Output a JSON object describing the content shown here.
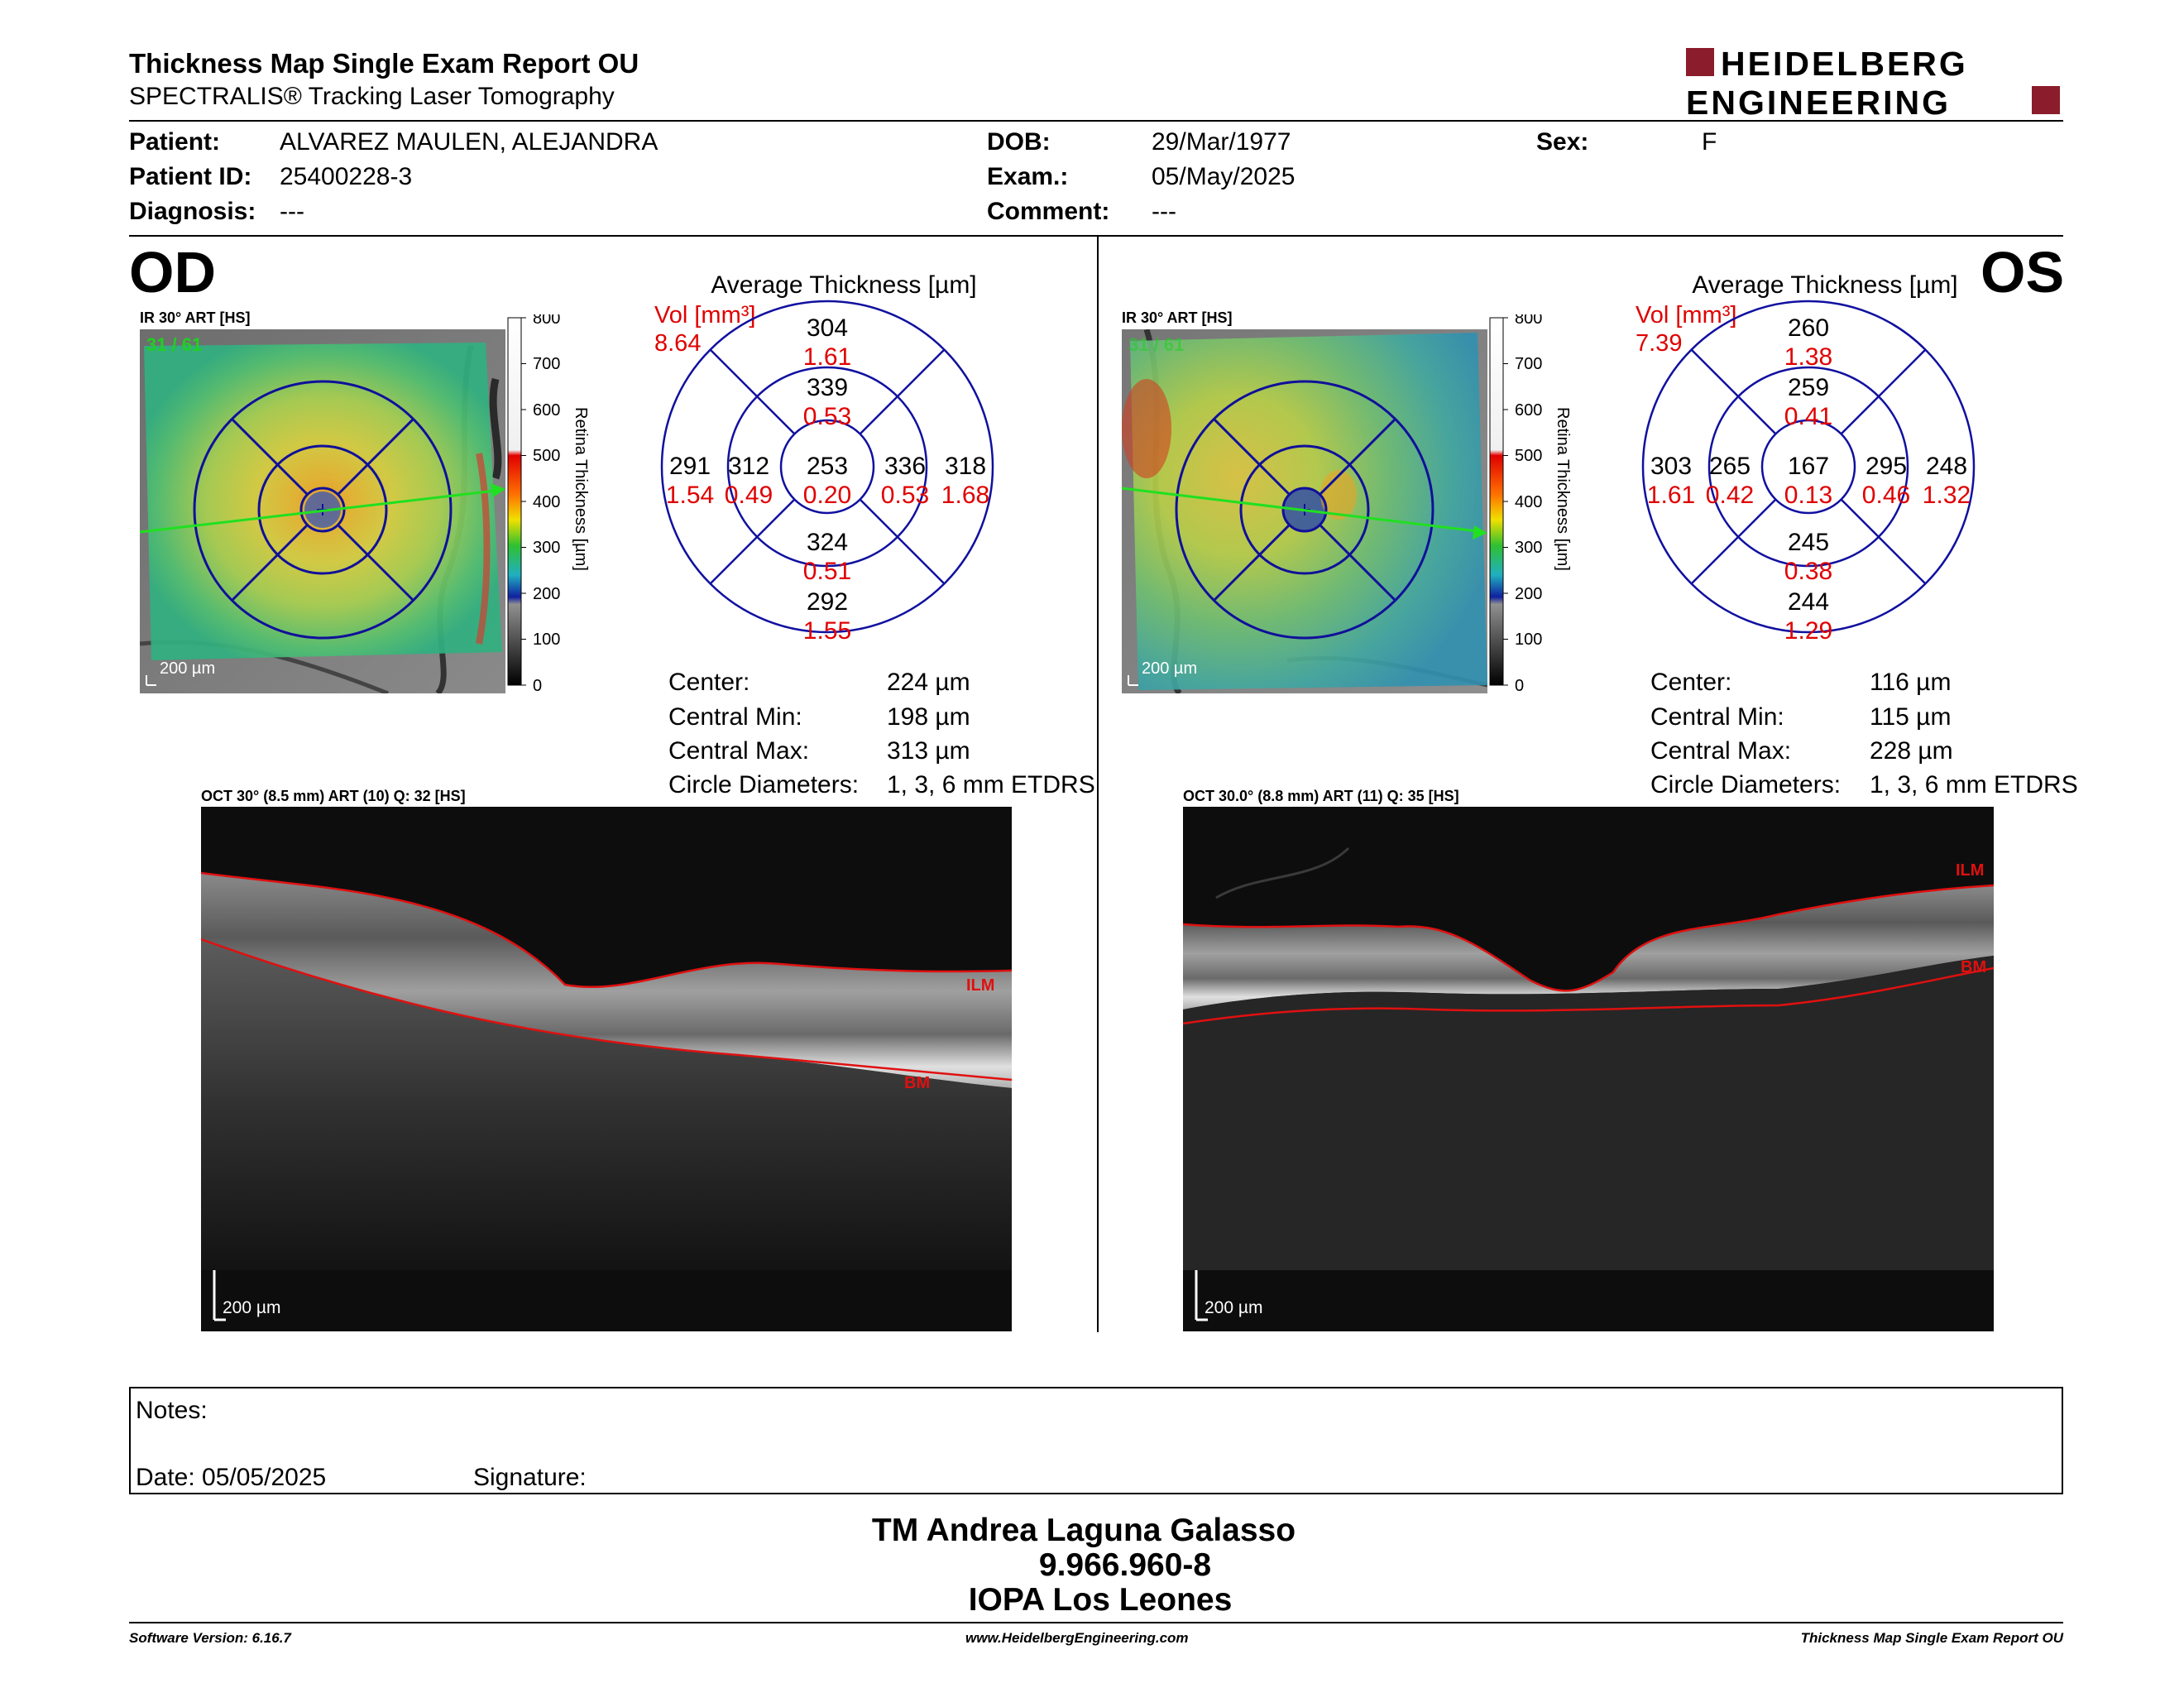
{
  "header": {
    "title": "Thickness Map Single Exam Report OU",
    "subtitle": "SPECTRALIS® Tracking Laser Tomography",
    "logo_line1": "HEIDELBERG",
    "logo_line2": "ENGINEERING",
    "logo_color": "#8b1c2b"
  },
  "patient": {
    "name_label": "Patient:",
    "name": "ALVAREZ MAULEN, ALEJANDRA",
    "id_label": "Patient ID:",
    "id": "25400228-3",
    "diagnosis_label": "Diagnosis:",
    "diagnosis": "---",
    "dob_label": "DOB:",
    "dob": "29/Mar/1977",
    "exam_label": "Exam.:",
    "exam": "05/May/2025",
    "comment_label": "Comment:",
    "comment": "---",
    "sex_label": "Sex:",
    "sex": "F"
  },
  "scale": {
    "title": "Retina  Thickness [µm]",
    "ticks": [
      "800",
      "700",
      "600",
      "500",
      "400",
      "300",
      "200",
      "100",
      "0"
    ]
  },
  "od": {
    "eye": "OD",
    "ir_label": "IR 30° ART [HS]",
    "frame_label": "31 / 61",
    "scalebar": "200 µm",
    "avg_title": "Average Thickness [µm]",
    "vol_label": "Vol [mm³]",
    "vol_total": "8.64",
    "grid": {
      "outer_superior": {
        "t": "304",
        "v": "1.61"
      },
      "inner_superior": {
        "t": "339",
        "v": "0.53"
      },
      "outer_temporal_left": {
        "t": "291",
        "v": "1.54"
      },
      "inner_temporal_left": {
        "t": "312",
        "v": "0.49"
      },
      "center": {
        "t": "253",
        "v": "0.20"
      },
      "inner_right": {
        "t": "336",
        "v": "0.53"
      },
      "outer_right": {
        "t": "318",
        "v": "1.68"
      },
      "inner_inferior": {
        "t": "324",
        "v": "0.51"
      },
      "outer_inferior": {
        "t": "292",
        "v": "1.55"
      }
    },
    "stats": {
      "center_label": "Center:",
      "center": "224 µm",
      "min_label": "Central Min:",
      "min": "198 µm",
      "max_label": "Central Max:",
      "max": "313 µm",
      "diam_label": "Circle Diameters:",
      "diam": "1, 3, 6 mm ETDRS"
    },
    "oct_label": "OCT 30° (8.5 mm) ART (10) Q: 32 [HS]",
    "ilm": "ILM",
    "bm": "BM",
    "oct_scalebar": "200 µm"
  },
  "os": {
    "eye": "OS",
    "ir_label": "IR 30° ART [HS]",
    "frame_label": "31 / 61",
    "scalebar": "200 µm",
    "avg_title": "Average Thickness [µm]",
    "vol_label": "Vol [mm³]",
    "vol_total": "7.39",
    "grid": {
      "outer_superior": {
        "t": "260",
        "v": "1.38"
      },
      "inner_superior": {
        "t": "259",
        "v": "0.41"
      },
      "outer_temporal_left": {
        "t": "303",
        "v": "1.61"
      },
      "inner_temporal_left": {
        "t": "265",
        "v": "0.42"
      },
      "center": {
        "t": "167",
        "v": "0.13"
      },
      "inner_right": {
        "t": "295",
        "v": "0.46"
      },
      "outer_right": {
        "t": "248",
        "v": "1.32"
      },
      "inner_inferior": {
        "t": "245",
        "v": "0.38"
      },
      "outer_inferior": {
        "t": "244",
        "v": "1.29"
      }
    },
    "stats": {
      "center_label": "Center:",
      "center": "116 µm",
      "min_label": "Central Min:",
      "min": "115 µm",
      "max_label": "Central Max:",
      "max": "228 µm",
      "diam_label": "Circle Diameters:",
      "diam": "1, 3, 6 mm ETDRS"
    },
    "oct_label": "OCT 30.0° (8.8 mm) ART (11) Q: 35 [HS]",
    "ilm": "ILM",
    "bm": "BM",
    "oct_scalebar": "200 µm"
  },
  "notes": {
    "notes_label": "Notes:",
    "date_label": "Date: 05/05/2025",
    "signature_label": "Signature:"
  },
  "signature": {
    "line1": "TM Andrea Laguna Galasso",
    "line2": "9.966.960-8",
    "line3": "IOPA Los Leones"
  },
  "footer": {
    "version": "Software Version: 6.16.7",
    "url": "www.HeidelbergEngineering.com",
    "report": "Thickness Map Single Exam Report OU"
  }
}
